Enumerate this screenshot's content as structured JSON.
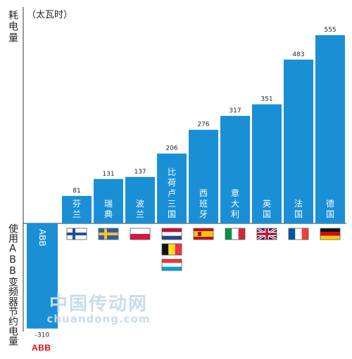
{
  "chart": {
    "unit": "（太瓦时）",
    "y_title": "耗电量",
    "y_title_negative": "使用ABB变频器节约电量",
    "watermark_cn": "中国传动网",
    "watermark_en": "chuandong.com",
    "logo": "ABB"
  },
  "chart_data": {
    "type": "bar",
    "categories": [
      "ABB",
      "芬兰",
      "瑞典",
      "波兰",
      "比荷卢三国",
      "西班牙",
      "意大利",
      "英国",
      "法国",
      "德国"
    ],
    "values": [
      -310,
      81,
      131,
      137,
      206,
      276,
      317,
      351,
      483,
      555
    ],
    "value_labels": [
      "-310",
      "81",
      "131",
      "137",
      "206",
      "276",
      "317",
      "351",
      "483",
      "555"
    ],
    "ylabel": "耗电量",
    "ylim": [
      -310,
      600
    ],
    "bar_color": "#1a8fd6",
    "grid": false,
    "flags": [
      [],
      [
        "finland"
      ],
      [
        "sweden"
      ],
      [
        "poland"
      ],
      [
        "netherlands",
        "belgium",
        "luxembourg"
      ],
      [
        "spain"
      ],
      [
        "italy"
      ],
      [
        "united-kingdom"
      ],
      [
        "france"
      ],
      [
        "germany"
      ]
    ]
  }
}
